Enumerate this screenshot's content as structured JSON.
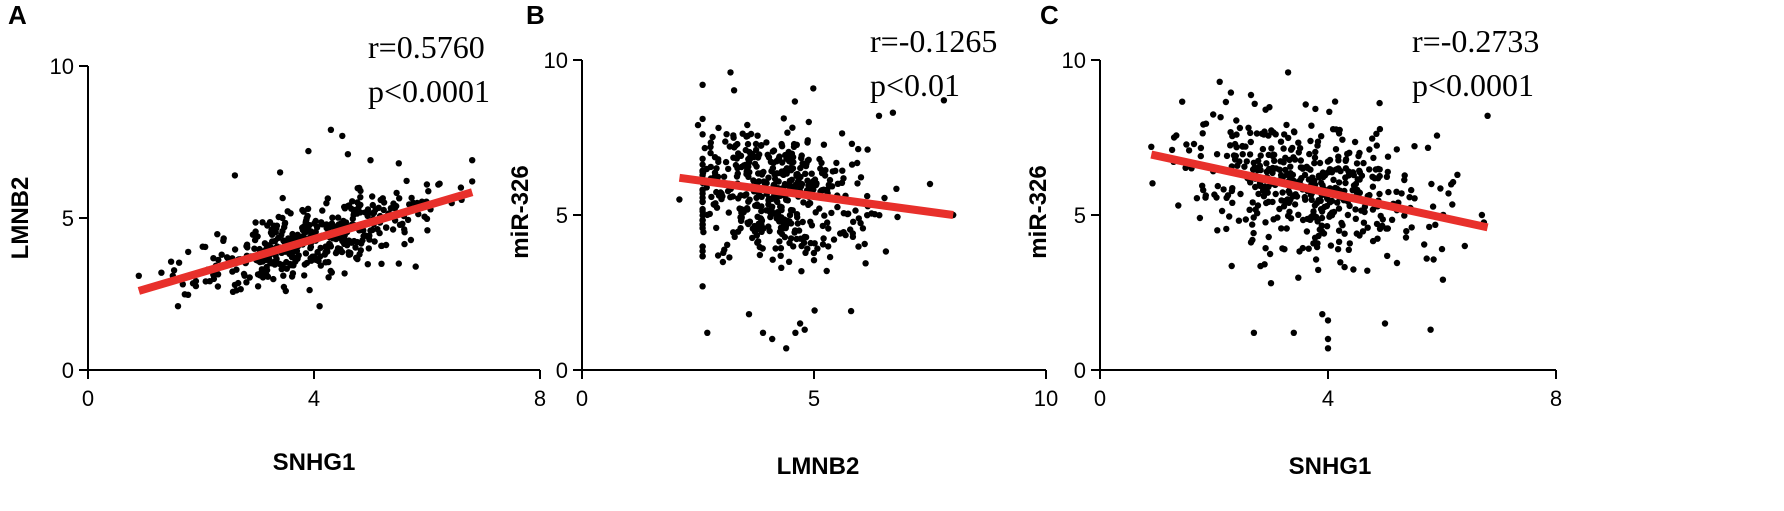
{
  "chart_data": [
    {
      "panel": "A",
      "type": "scatter",
      "xlabel": "SNHG1",
      "ylabel": "LMNB2",
      "xlim": [
        0,
        8
      ],
      "ylim": [
        0,
        10
      ],
      "xticks": [
        "0",
        "4",
        "8"
      ],
      "yticks": [
        "0",
        "5",
        "10"
      ],
      "annotations": [
        "r=0.5760",
        "p<0.0001"
      ],
      "fit_line": {
        "x": [
          0.9,
          6.8
        ],
        "y": [
          2.6,
          5.85
        ]
      },
      "fit_color": "#e8302b",
      "cluster": {
        "count": 430,
        "x_mean": 4.0,
        "x_sd": 1.0,
        "slope": 0.55,
        "intercept": 2.1,
        "residual_sd": 0.55,
        "x_range": [
          0.9,
          6.8
        ],
        "y_range": [
          2.1,
          8.0
        ]
      },
      "points": [
        [
          0.9,
          3.1
        ],
        [
          1.3,
          3.2
        ],
        [
          1.5,
          3.1
        ],
        [
          2.6,
          6.4
        ],
        [
          3.4,
          6.5
        ],
        [
          3.9,
          7.2
        ],
        [
          4.1,
          2.1
        ],
        [
          4.3,
          7.9
        ],
        [
          4.5,
          7.7
        ],
        [
          4.6,
          7.1
        ],
        [
          5.0,
          6.9
        ],
        [
          5.5,
          6.8
        ],
        [
          5.8,
          3.4
        ],
        [
          6.2,
          6.1
        ],
        [
          6.6,
          6.0
        ],
        [
          6.8,
          6.9
        ],
        [
          3.5,
          2.6
        ],
        [
          2.6,
          2.8
        ],
        [
          5.5,
          3.5
        ]
      ]
    },
    {
      "panel": "B",
      "type": "scatter",
      "xlabel": "LMNB2",
      "ylabel": "miR-326",
      "xlim": [
        0,
        10
      ],
      "ylim": [
        0,
        10
      ],
      "xticks": [
        "0",
        "5",
        "10"
      ],
      "yticks": [
        "0",
        "5",
        "10"
      ],
      "annotations": [
        "r=-0.1265",
        "p<0.01"
      ],
      "fit_line": {
        "x": [
          2.1,
          8.0
        ],
        "y": [
          6.2,
          5.0
        ]
      },
      "fit_color": "#e8302b",
      "cluster": {
        "count": 480,
        "x_mean": 4.1,
        "x_sd": 0.95,
        "slope": -0.2,
        "intercept": 6.55,
        "residual_sd": 1.1,
        "x_range": [
          2.6,
          7.9
        ],
        "y_range": [
          0.7,
          9.6
        ]
      },
      "points": [
        [
          2.1,
          5.5
        ],
        [
          2.6,
          2.7
        ],
        [
          2.7,
          1.2
        ],
        [
          3.2,
          9.6
        ],
        [
          3.6,
          1.8
        ],
        [
          3.9,
          1.2
        ],
        [
          4.1,
          1.0
        ],
        [
          4.4,
          0.7
        ],
        [
          4.6,
          1.2
        ],
        [
          4.7,
          1.5
        ],
        [
          4.8,
          1.3
        ],
        [
          5.8,
          1.9
        ],
        [
          6.4,
          8.2
        ],
        [
          6.7,
          8.3
        ],
        [
          7.5,
          6.0
        ],
        [
          7.8,
          8.7
        ],
        [
          8.0,
          5.0
        ],
        [
          2.6,
          8.1
        ],
        [
          2.5,
          7.9
        ]
      ]
    },
    {
      "panel": "C",
      "type": "scatter",
      "xlabel": "SNHG1",
      "ylabel": "miR-326",
      "xlim": [
        0,
        8
      ],
      "ylim": [
        0,
        10
      ],
      "xticks": [
        "0",
        "4",
        "8"
      ],
      "yticks": [
        "0",
        "5",
        "10"
      ],
      "annotations": [
        "r=-0.2733",
        "p<0.0001"
      ],
      "fit_line": {
        "x": [
          0.9,
          6.8
        ],
        "y": [
          6.95,
          4.6
        ]
      },
      "fit_color": "#e8302b",
      "cluster": {
        "count": 480,
        "x_mean": 3.7,
        "x_sd": 1.0,
        "slope": -0.35,
        "intercept": 7.2,
        "residual_sd": 1.05,
        "x_range": [
          0.9,
          6.8
        ],
        "y_range": [
          0.7,
          9.6
        ]
      },
      "points": [
        [
          0.9,
          7.2
        ],
        [
          1.3,
          7.5
        ],
        [
          2.7,
          1.2
        ],
        [
          3.0,
          2.8
        ],
        [
          3.3,
          9.6
        ],
        [
          3.4,
          1.2
        ],
        [
          3.9,
          1.8
        ],
        [
          4.0,
          0.7
        ],
        [
          4.0,
          1.0
        ],
        [
          4.0,
          1.6
        ],
        [
          5.0,
          1.5
        ],
        [
          5.8,
          1.3
        ],
        [
          6.0,
          3.9
        ],
        [
          6.4,
          4.0
        ],
        [
          6.8,
          8.2
        ],
        [
          6.7,
          5.0
        ]
      ]
    }
  ]
}
